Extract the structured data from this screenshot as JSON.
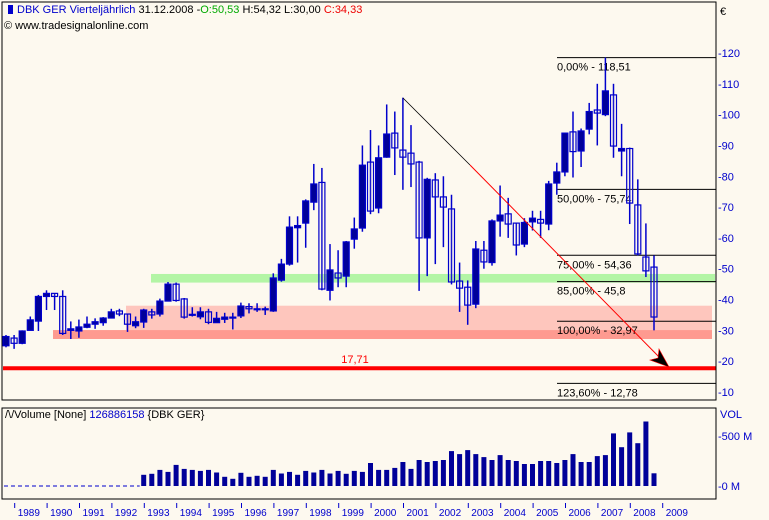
{
  "header": {
    "symbol": "DBK GER Vierteljährlich",
    "date": "31.12.2008 -",
    "open": "O:50,53",
    "high_low": "H:54,32 L:30,00",
    "close": "C:34,33",
    "copyright": "© www.tradesignalonline.com"
  },
  "volume_panel": {
    "icon": "wave-icon",
    "title": "Volume [None]",
    "last_value": "126886158",
    "symbol": "{DBK GER}",
    "axis_title": "VOL",
    "ticks": [
      {
        "label": "-500 M",
        "value": 500
      },
      {
        "label": "-0 M",
        "value": 0
      }
    ]
  },
  "price_axis": {
    "currency": "€",
    "ticks": [
      {
        "label": "-120",
        "value": 120
      },
      {
        "label": "-110",
        "value": 110
      },
      {
        "label": "-100",
        "value": 100
      },
      {
        "label": "-90",
        "value": 90
      },
      {
        "label": "-80",
        "value": 80
      },
      {
        "label": "-70",
        "value": 70
      },
      {
        "label": "-60",
        "value": 60
      },
      {
        "label": "-50",
        "value": 50
      },
      {
        "label": "-40",
        "value": 40
      },
      {
        "label": "-30",
        "value": 30
      },
      {
        "label": "-20",
        "value": 20
      },
      {
        "label": "-10",
        "value": 10
      }
    ]
  },
  "chart_data": {
    "type": "candlestick",
    "title": "DBK GER Vierteljährlich",
    "ylim": [
      10,
      120
    ],
    "x_tick_labels": [
      "1989",
      "1990",
      "1991",
      "1992",
      "1993",
      "1994",
      "1995",
      "1996",
      "1997",
      "1998",
      "1999",
      "2000",
      "2001",
      "2002",
      "2003",
      "2004",
      "2005",
      "2006",
      "2007",
      "2008",
      "2009"
    ],
    "ohlc": [
      [
        25,
        28.5,
        24.5,
        28
      ],
      [
        27.5,
        28.5,
        24,
        25.8
      ],
      [
        25.8,
        30,
        25.5,
        29.8
      ],
      [
        30,
        34.5,
        30,
        33.4
      ],
      [
        33,
        41.5,
        29.8,
        41
      ],
      [
        41,
        43,
        36.6,
        42
      ],
      [
        42,
        42,
        36.6,
        41
      ],
      [
        41,
        43,
        28.5,
        29
      ],
      [
        30,
        32.9,
        27.2,
        30.5
      ],
      [
        29.8,
        33.5,
        27.6,
        31.1
      ],
      [
        31,
        34.5,
        30.7,
        32
      ],
      [
        32,
        33.9,
        30.5,
        32.8
      ],
      [
        32.5,
        34.3,
        31.5,
        34
      ],
      [
        34,
        37,
        34,
        36
      ],
      [
        36.3,
        37,
        34.6,
        35.3
      ],
      [
        35.3,
        35.3,
        29.5,
        32
      ],
      [
        31.5,
        34.5,
        30.7,
        32.8
      ],
      [
        32.7,
        37,
        30.8,
        36.6
      ],
      [
        36,
        37,
        33.8,
        35
      ],
      [
        35.3,
        40.3,
        34.5,
        39.5
      ],
      [
        39.5,
        45.7,
        39.5,
        45
      ],
      [
        45,
        45.5,
        39.3,
        39.7
      ],
      [
        40.2,
        40.5,
        33.8,
        34.3
      ],
      [
        35,
        37.5,
        34.5,
        35.2
      ],
      [
        34.4,
        37.5,
        33.6,
        36
      ],
      [
        36,
        37,
        32,
        32.6
      ],
      [
        32.5,
        36,
        32.4,
        33.9
      ],
      [
        33.6,
        35.7,
        32.4,
        34.3
      ],
      [
        34.1,
        35.7,
        30.3,
        34.3
      ],
      [
        34.7,
        39,
        34,
        37.9
      ],
      [
        37.7,
        38.8,
        35.5,
        37
      ],
      [
        36.8,
        38.8,
        36,
        37
      ],
      [
        36.8,
        37.7,
        35,
        37
      ],
      [
        36.3,
        48.5,
        36,
        47
      ],
      [
        46.3,
        53.2,
        45.8,
        51.5
      ],
      [
        51.5,
        67,
        51,
        63.5
      ],
      [
        63.3,
        67,
        52,
        64
      ],
      [
        64.8,
        72.5,
        56.8,
        72
      ],
      [
        71.6,
        84,
        69,
        77.5
      ],
      [
        78,
        82.7,
        43,
        43.4
      ],
      [
        43,
        58,
        39.7,
        49.6
      ],
      [
        48.6,
        56,
        44,
        47
      ],
      [
        47.6,
        59,
        44,
        58.7
      ],
      [
        59.6,
        66.6,
        56.5,
        62.9
      ],
      [
        63.2,
        90,
        62,
        83.6
      ],
      [
        84.6,
        95,
        67.7,
        68.7
      ],
      [
        69.7,
        90,
        68,
        86
      ],
      [
        86.2,
        103.3,
        86,
        93.7
      ],
      [
        94,
        101,
        80.4,
        89.2
      ],
      [
        88.5,
        105.5,
        75.6,
        86.2
      ],
      [
        87.5,
        96.6,
        76.5,
        84
      ],
      [
        84.6,
        85,
        42.8,
        60
      ],
      [
        60,
        79.5,
        47.6,
        79
      ],
      [
        78.8,
        81,
        51.5,
        73.3
      ],
      [
        73.3,
        80,
        57,
        70
      ],
      [
        69.4,
        74,
        44.9,
        45.7
      ],
      [
        46,
        52,
        36,
        43.7
      ],
      [
        44,
        46.2,
        31.8,
        38.2
      ],
      [
        38.5,
        59,
        37.2,
        56.4
      ],
      [
        56,
        59,
        50,
        52.2
      ],
      [
        52,
        66,
        51,
        65.5
      ],
      [
        65.5,
        77,
        60.4,
        67.4
      ],
      [
        67.8,
        73,
        60,
        64.5
      ],
      [
        64.8,
        65,
        54.3,
        57.7
      ],
      [
        58,
        66.4,
        57,
        65
      ],
      [
        65.2,
        68.8,
        62.4,
        66.4
      ],
      [
        66,
        68.8,
        60,
        64.8
      ],
      [
        64.5,
        78.5,
        62.5,
        77.5
      ],
      [
        77.8,
        84.4,
        74,
        81.4
      ],
      [
        81.4,
        94,
        80,
        94
      ],
      [
        94.4,
        101,
        79.6,
        88
      ],
      [
        88.2,
        95.5,
        83,
        94.7
      ],
      [
        95.3,
        103.8,
        93.6,
        101
      ],
      [
        101.5,
        110,
        90,
        100.5
      ],
      [
        100,
        118.51,
        99.5,
        107.7
      ],
      [
        106.4,
        110,
        86,
        89.8
      ],
      [
        88.2,
        97,
        80,
        89
      ],
      [
        89,
        89.3,
        64.5,
        71.3
      ],
      [
        70.7,
        79,
        54.3,
        54.8
      ],
      [
        53.8,
        64.7,
        47.3,
        49.3
      ],
      [
        50.53,
        54.32,
        30,
        34.33
      ]
    ],
    "volume_start_index": 17,
    "volume_millions": [
      112,
      122,
      161,
      141,
      211,
      171,
      161,
      151,
      161,
      135,
      92,
      72,
      132,
      92,
      102,
      92,
      161,
      125,
      141,
      112,
      151,
      135,
      161,
      125,
      151,
      122,
      151,
      141,
      230,
      161,
      161,
      181,
      240,
      171,
      260,
      240,
      250,
      260,
      349,
      319,
      359,
      319,
      289,
      260,
      309,
      260,
      250,
      220,
      220,
      250,
      250,
      230,
      260,
      319,
      240,
      240,
      299,
      309,
      526,
      388,
      536,
      428,
      645,
      127
    ],
    "fibonacci_levels": [
      {
        "label": "0,00% - 118,51",
        "value": 118.51
      },
      {
        "label": "50,00% - 75,74",
        "value": 75.74
      },
      {
        "label": "75,00% - 54,36",
        "value": 54.36
      },
      {
        "label": "85,00% - 45,8",
        "value": 45.8
      },
      {
        "label": "100,00% - 32,97",
        "value": 32.97
      },
      {
        "label": "123,60% - 12,78",
        "value": 12.78
      }
    ],
    "support_line": {
      "label": "17,71",
      "value": 17.71,
      "color": "#ff0000"
    },
    "zones": [
      {
        "name": "green-zone",
        "from": 45.5,
        "to": 48.3,
        "color": "#b3f5a5"
      },
      {
        "name": "light-red-zone",
        "from": 30.1,
        "to": 38.0,
        "color": "#fec6bd"
      },
      {
        "name": "red-zone",
        "from": 27.2,
        "to": 30.1,
        "color": "#fe9a90"
      }
    ],
    "trendline": {
      "from_value": 105.5,
      "to_value": 18
    }
  },
  "colors": {
    "candle": "#000099",
    "candle_outline": "#0000cc",
    "axis_text": "#0000cc",
    "background": "#fdf9ef"
  }
}
